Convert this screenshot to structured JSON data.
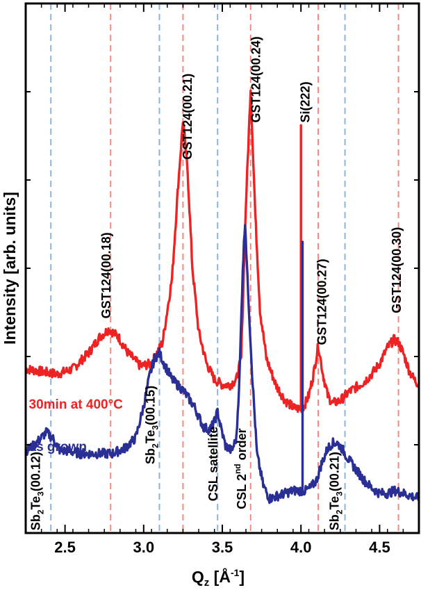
{
  "chart_data": {
    "type": "line",
    "xlabel": {
      "base": "Q",
      "sub": "z",
      "unit_open": " [Å",
      "sup": "-1",
      "unit_close": "]"
    },
    "ylabel": "Intensity [arb. units]",
    "xlim": [
      2.25,
      4.75
    ],
    "ylim": [
      0,
      1
    ],
    "x_ticks": [
      "2.5",
      "3.0",
      "3.5",
      "4.0",
      "4.5"
    ],
    "x_tick_values": [
      2.5,
      3.0,
      3.5,
      4.0,
      4.5
    ],
    "grid": false,
    "colors": {
      "annealed": "#ee2222",
      "as_grown": "#2a2f96",
      "red_ref": "#f08a80",
      "blue_ref": "#8db4e0",
      "axis": "#000000"
    },
    "series": [
      {
        "name": "30min at 400°C",
        "x": [
          2.25,
          2.35,
          2.45,
          2.55,
          2.65,
          2.72,
          2.78,
          2.84,
          2.9,
          2.98,
          3.05,
          3.12,
          3.18,
          3.22,
          3.25,
          3.28,
          3.31,
          3.35,
          3.4,
          3.45,
          3.5,
          3.55,
          3.59,
          3.62,
          3.65,
          3.68,
          3.71,
          3.74,
          3.78,
          3.84,
          3.9,
          3.96,
          4.0,
          4.0,
          4.0,
          4.02,
          4.05,
          4.08,
          4.11,
          4.14,
          4.17,
          4.2,
          4.25,
          4.3,
          4.35,
          4.4,
          4.45,
          4.5,
          4.55,
          4.59,
          4.62,
          4.65,
          4.69,
          4.72,
          4.75
        ],
        "y": [
          0.31,
          0.305,
          0.3,
          0.31,
          0.34,
          0.37,
          0.385,
          0.37,
          0.34,
          0.315,
          0.32,
          0.36,
          0.48,
          0.66,
          0.78,
          0.68,
          0.5,
          0.38,
          0.32,
          0.29,
          0.28,
          0.28,
          0.29,
          0.33,
          0.62,
          0.84,
          0.6,
          0.42,
          0.33,
          0.28,
          0.25,
          0.235,
          0.235,
          0.77,
          0.235,
          0.24,
          0.26,
          0.3,
          0.355,
          0.3,
          0.26,
          0.245,
          0.25,
          0.265,
          0.275,
          0.285,
          0.3,
          0.32,
          0.35,
          0.365,
          0.36,
          0.34,
          0.305,
          0.29,
          0.28
        ]
      },
      {
        "name": "as grown",
        "x": [
          2.25,
          2.3,
          2.35,
          2.38,
          2.42,
          2.47,
          2.52,
          2.6,
          2.7,
          2.8,
          2.88,
          2.95,
          3.0,
          3.04,
          3.07,
          3.1,
          3.13,
          3.18,
          3.25,
          3.32,
          3.38,
          3.42,
          3.45,
          3.47,
          3.49,
          3.52,
          3.56,
          3.59,
          3.61,
          3.63,
          3.645,
          3.66,
          3.69,
          3.72,
          3.76,
          3.8,
          3.85,
          3.9,
          3.95,
          4.0,
          4.01,
          4.01,
          4.01,
          4.03,
          4.06,
          4.1,
          4.13,
          4.17,
          4.2,
          4.23,
          4.26,
          4.3,
          4.35,
          4.4,
          4.45,
          4.5,
          4.55,
          4.6,
          4.65,
          4.7,
          4.75
        ],
        "y": [
          0.155,
          0.165,
          0.18,
          0.19,
          0.18,
          0.155,
          0.155,
          0.15,
          0.15,
          0.15,
          0.16,
          0.18,
          0.24,
          0.3,
          0.33,
          0.34,
          0.32,
          0.29,
          0.27,
          0.24,
          0.2,
          0.195,
          0.21,
          0.23,
          0.2,
          0.165,
          0.155,
          0.18,
          0.3,
          0.5,
          0.59,
          0.48,
          0.3,
          0.15,
          0.09,
          0.065,
          0.07,
          0.075,
          0.08,
          0.08,
          0.08,
          0.55,
          0.08,
          0.08,
          0.085,
          0.1,
          0.13,
          0.16,
          0.17,
          0.17,
          0.16,
          0.14,
          0.12,
          0.1,
          0.085,
          0.075,
          0.075,
          0.08,
          0.075,
          0.07,
          0.065
        ]
      }
    ],
    "series_labels": [
      {
        "text": "30min at 400°C",
        "x": 2.27,
        "y": 0.235
      },
      {
        "text": "as grown",
        "x": 2.27,
        "y": 0.155
      }
    ],
    "reference_lines": [
      {
        "x": 2.41,
        "color": "blue"
      },
      {
        "x": 3.1,
        "color": "blue"
      },
      {
        "x": 3.47,
        "color": "blue"
      },
      {
        "x": 4.28,
        "color": "blue"
      },
      {
        "x": 2.79,
        "color": "red"
      },
      {
        "x": 3.25,
        "color": "red"
      },
      {
        "x": 3.68,
        "color": "red"
      },
      {
        "x": 4.11,
        "color": "red"
      },
      {
        "x": 4.62,
        "color": "red"
      }
    ],
    "annotations": [
      {
        "parts": [
          [
            "GST124(00.18)",
            ""
          ]
        ],
        "x": 2.79,
        "y": 0.405,
        "color": "#000000"
      },
      {
        "parts": [
          [
            "GST124(00.21)",
            ""
          ]
        ],
        "x": 3.305,
        "y": 0.705,
        "color": "#000000"
      },
      {
        "parts": [
          [
            "GST124(00.24)",
            ""
          ]
        ],
        "x": 3.74,
        "y": 0.775,
        "color": "#000000"
      },
      {
        "parts": [
          [
            "Si(222)",
            ""
          ]
        ],
        "x": 4.055,
        "y": 0.775,
        "color": "#000000"
      },
      {
        "parts": [
          [
            "GST124(00.27)",
            ""
          ]
        ],
        "x": 4.16,
        "y": 0.355,
        "color": "#000000"
      },
      {
        "parts": [
          [
            "GST124(00.30)",
            ""
          ]
        ],
        "x": 4.635,
        "y": 0.415,
        "color": "#000000"
      },
      {
        "parts": [
          [
            "Sb",
            ""
          ],
          [
            "2",
            "sub"
          ],
          [
            "Te",
            ""
          ],
          [
            "3",
            "sub"
          ],
          [
            "(00.12)",
            ""
          ]
        ],
        "x": 2.34,
        "y": 0.005,
        "color": "#000000"
      },
      {
        "parts": [
          [
            "Sb",
            ""
          ],
          [
            "2",
            "sub"
          ],
          [
            "Te",
            ""
          ],
          [
            "3",
            "sub"
          ],
          [
            "(00.15)",
            ""
          ]
        ],
        "x": 3.07,
        "y": 0.13,
        "color": "#000000"
      },
      {
        "parts": [
          [
            "CSL satellite",
            ""
          ]
        ],
        "x": 3.47,
        "y": 0.06,
        "color": "#000000"
      },
      {
        "parts": [
          [
            "CSL 2",
            ""
          ],
          [
            "nd",
            "sup"
          ],
          [
            " order",
            ""
          ]
        ],
        "x": 3.65,
        "y": 0.045,
        "color": "#000000"
      },
      {
        "parts": [
          [
            "Sb",
            ""
          ],
          [
            "2",
            "sub"
          ],
          [
            "Te",
            ""
          ],
          [
            "3",
            "sub"
          ],
          [
            "(00.21)",
            ""
          ]
        ],
        "x": 4.24,
        "y": 0.005,
        "color": "#000000"
      }
    ]
  }
}
